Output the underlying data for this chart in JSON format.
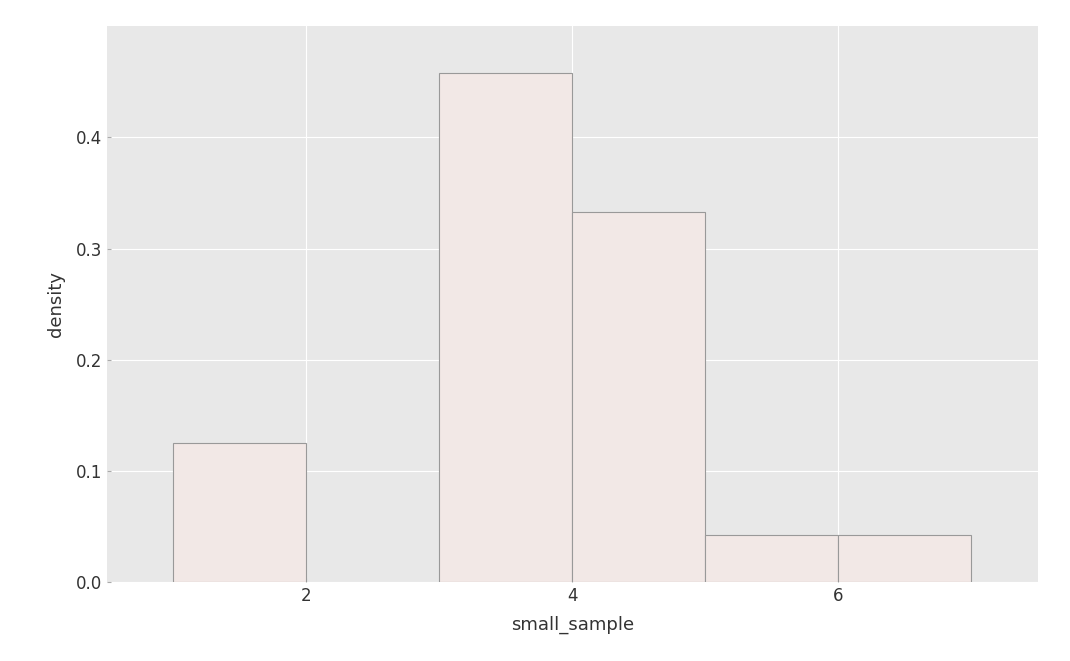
{
  "title": "",
  "xlabel": "small_sample",
  "ylabel": "density",
  "bar_color": "#f2e8e6",
  "bar_edge_color": "#999999",
  "bar_edge_width": 0.8,
  "outer_background": "#e8e8e8",
  "panel_background": "#e8e8e8",
  "grid_color": "#ffffff",
  "bins": [
    1.0,
    2.0,
    3.0,
    4.0,
    5.0,
    6.0,
    7.0
  ],
  "heights": [
    0.125,
    0.0,
    0.458,
    0.333,
    0.042,
    0.042
  ],
  "xlim": [
    0.5,
    7.5
  ],
  "ylim": [
    0.0,
    0.5
  ],
  "xticks": [
    2,
    4,
    6
  ],
  "yticks": [
    0.0,
    0.1,
    0.2,
    0.3,
    0.4
  ],
  "xlabel_fontsize": 13,
  "ylabel_fontsize": 13,
  "tick_fontsize": 12,
  "axis_label_color": "#333333",
  "tick_color": "#333333"
}
